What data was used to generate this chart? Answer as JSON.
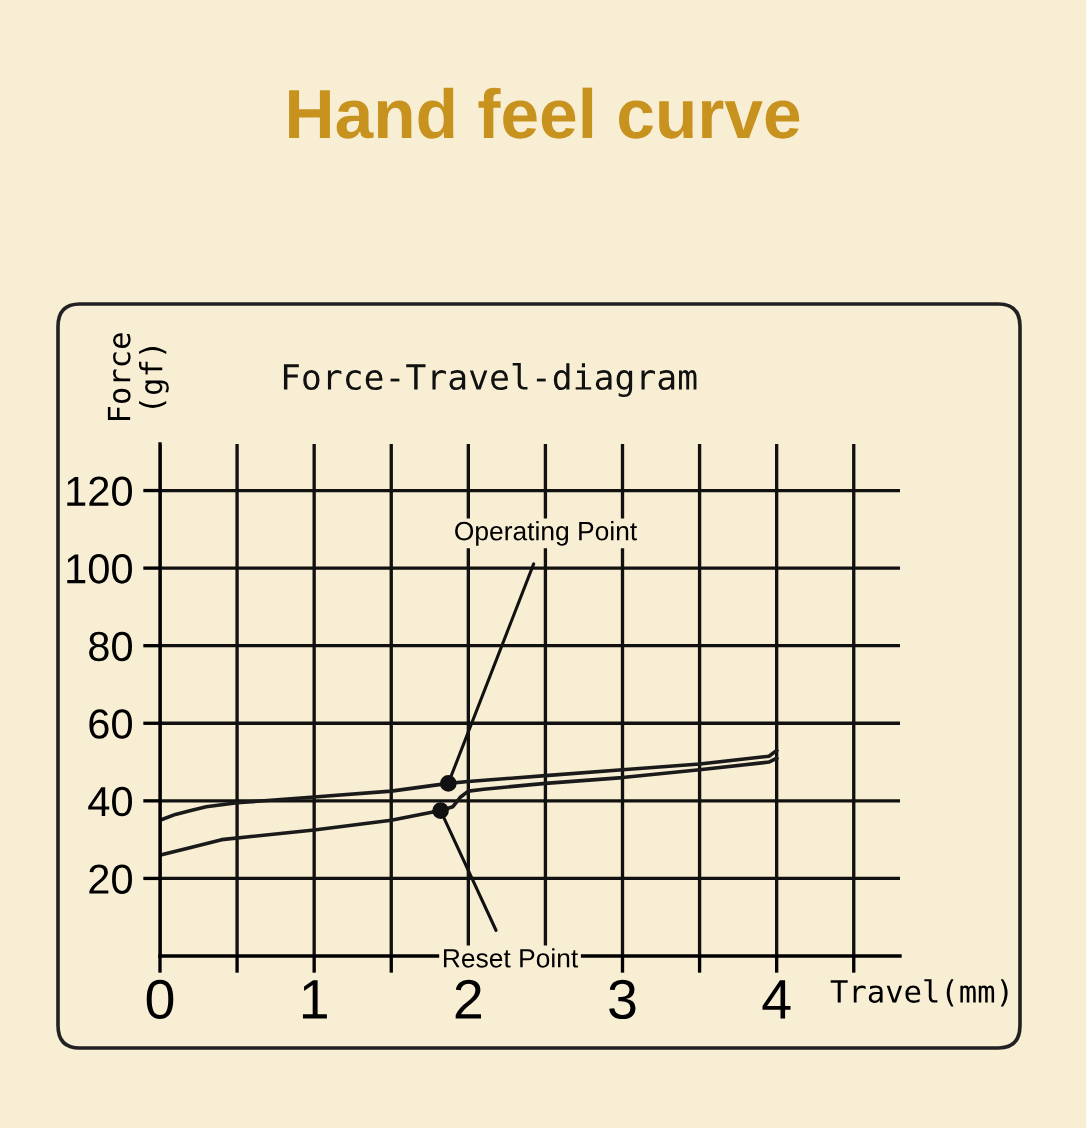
{
  "chart_data": {
    "type": "line",
    "title": "Hand feel curve",
    "subtitle": "Force-Travel-diagram",
    "xlabel": "Travel(mm)",
    "ylabel": "Force\n(gf)",
    "series": [
      {
        "color": "#1a1a1a",
        "x": [
          0,
          0.1,
          0.2,
          0.3,
          0.5,
          1,
          1.5,
          1.87,
          2,
          2.5,
          3,
          3.5,
          3.95,
          4.0
        ],
        "values": [
          35,
          36.5,
          37.5,
          38.5,
          39.5,
          41,
          42.5,
          44.5,
          45,
          46.5,
          48,
          49.5,
          51.5,
          53
        ]
      },
      {
        "color": "#1a1a1a",
        "x": [
          0,
          0.2,
          0.4,
          1,
          1.5,
          1.82,
          1.9,
          1.95,
          2.0,
          2.1,
          2.5,
          3,
          3.5,
          3.95,
          4.0
        ],
        "values": [
          26,
          28,
          30,
          32.5,
          35,
          37.5,
          38.5,
          41,
          42.5,
          43,
          44.5,
          46,
          48,
          50,
          51
        ]
      }
    ],
    "annotations": [
      {
        "text": "Operating Point",
        "x": 1.87,
        "y": 44.5
      },
      {
        "text": "Reset Point",
        "x": 1.82,
        "y": 37.5
      }
    ],
    "xlim": [
      0,
      4.8
    ],
    "ylim": [
      0,
      132
    ],
    "xticks": [
      0,
      {
        "value": 0.5,
        "label": null
      },
      1,
      {
        "value": 1.5,
        "label": null
      },
      2,
      {
        "value": 2.5,
        "label": null
      },
      3,
      {
        "value": 3.5,
        "label": null
      },
      4,
      {
        "value": 4.5,
        "label": null
      }
    ],
    "yticks": [
      20,
      40,
      60,
      80,
      100,
      120
    ],
    "grid": true,
    "legend": false,
    "marker": "none",
    "line_style": "solid"
  }
}
